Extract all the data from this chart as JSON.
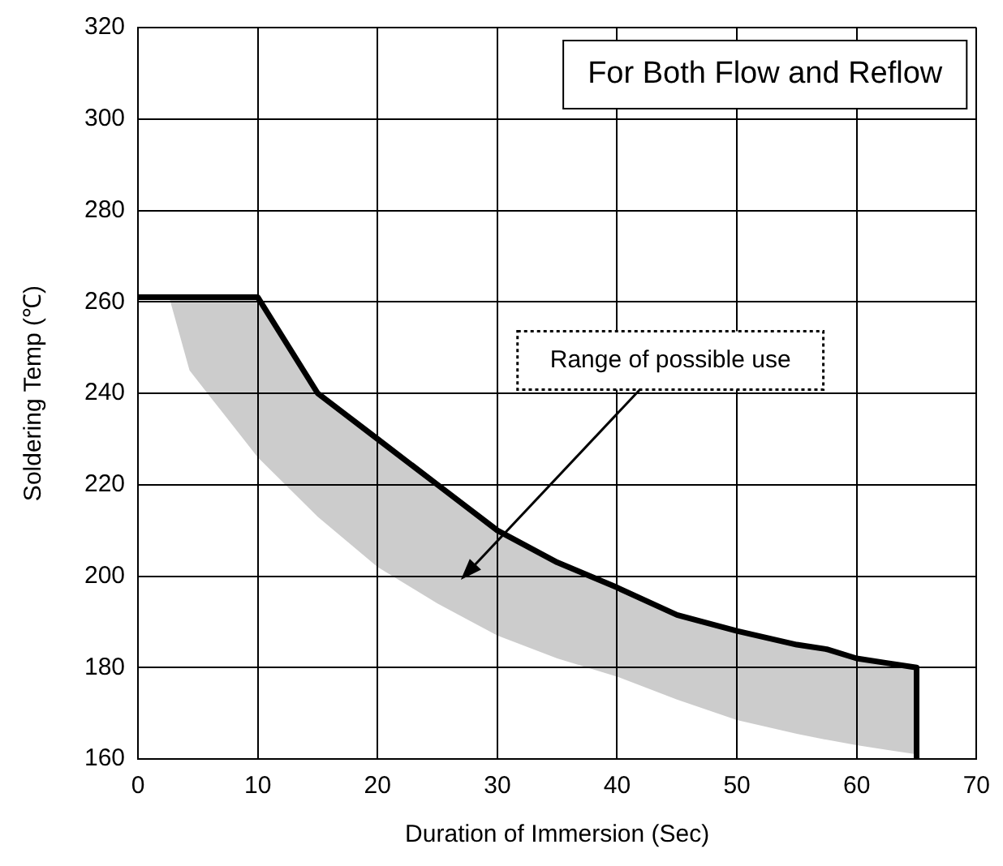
{
  "chart_data": {
    "type": "line",
    "xlabel": "Duration of Immersion (Sec)",
    "ylabel": "Soldering Temp (℃)",
    "xlim": [
      0,
      70
    ],
    "xticks": [
      0,
      10,
      20,
      30,
      40,
      50,
      60,
      70
    ],
    "ylim": [
      160,
      320
    ],
    "yticks": [
      160,
      180,
      200,
      220,
      240,
      260,
      280,
      300,
      320
    ],
    "grid": true,
    "legend": false,
    "marker": "none",
    "line_style": "solid",
    "series": [
      {
        "type": "line",
        "color": "#000000",
        "x": [
          0,
          2.6,
          4.3,
          10,
          15,
          20,
          25,
          30,
          35,
          40,
          45,
          50,
          55,
          57.5,
          60,
          62.5,
          65,
          65
        ],
        "values": [
          261,
          261,
          261,
          261,
          240,
          230,
          220,
          210,
          203,
          197.5,
          191.5,
          188,
          185,
          184,
          182,
          181,
          180,
          160
        ],
        "lower": [
          null,
          261,
          245,
          226,
          213,
          202,
          194,
          187,
          182,
          178,
          173,
          168.5,
          165.5,
          164.2,
          163,
          162,
          161,
          null
        ],
        "upper": [
          null,
          261,
          261,
          261,
          240,
          230,
          220,
          210,
          203,
          197.5,
          191.5,
          188,
          185,
          184,
          182,
          181,
          180,
          null
        ]
      }
    ],
    "annotations": [
      "For Both Flow and Reflow",
      "Range of possible use"
    ]
  }
}
